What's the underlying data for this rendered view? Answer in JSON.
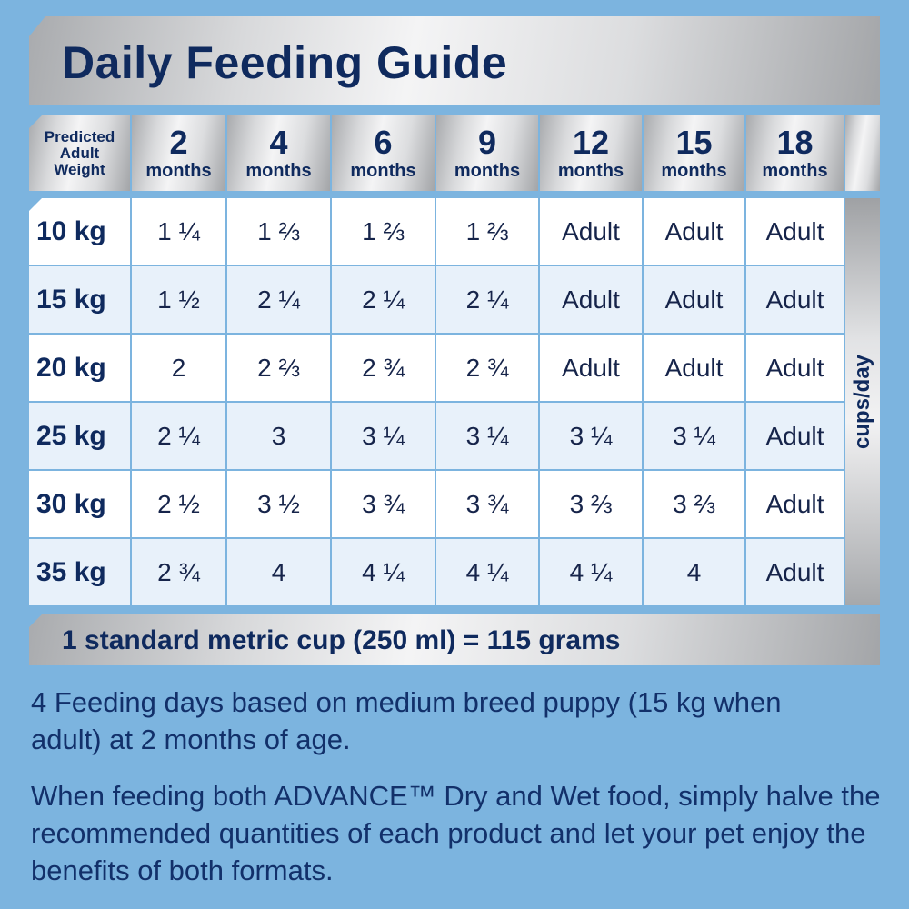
{
  "title": "Daily Feeding Guide",
  "table": {
    "corner_label": [
      "Predicted",
      "Adult",
      "Weight"
    ],
    "columns": [
      {
        "num": "2",
        "unit": "months"
      },
      {
        "num": "4",
        "unit": "months"
      },
      {
        "num": "6",
        "unit": "months"
      },
      {
        "num": "9",
        "unit": "months"
      },
      {
        "num": "12",
        "unit": "months"
      },
      {
        "num": "15",
        "unit": "months"
      },
      {
        "num": "18",
        "unit": "months"
      }
    ],
    "rows": [
      {
        "weight": "10 kg",
        "values": [
          "1 ¼",
          "1 ⅔",
          "1 ⅔",
          "1 ⅔",
          "Adult",
          "Adult",
          "Adult"
        ]
      },
      {
        "weight": "15 kg",
        "values": [
          "1 ½",
          "2 ¼",
          "2 ¼",
          "2 ¼",
          "Adult",
          "Adult",
          "Adult"
        ]
      },
      {
        "weight": "20 kg",
        "values": [
          "2",
          "2 ⅔",
          "2 ¾",
          "2 ¾",
          "Adult",
          "Adult",
          "Adult"
        ]
      },
      {
        "weight": "25 kg",
        "values": [
          "2 ¼",
          "3",
          "3 ¼",
          "3 ¼",
          "3 ¼",
          "3 ¼",
          "Adult"
        ]
      },
      {
        "weight": "30 kg",
        "values": [
          "2 ½",
          "3 ½",
          "3 ¾",
          "3 ¾",
          "3 ⅔",
          "3 ⅔",
          "Adult"
        ]
      },
      {
        "weight": "35 kg",
        "values": [
          "2 ¾",
          "4",
          "4 ¼",
          "4 ¼",
          "4 ¼",
          "4",
          "Adult"
        ]
      }
    ],
    "unit_label": "cups/day"
  },
  "footer": "1 standard metric cup (250 ml) = 115 grams",
  "notes": [
    "4 Feeding days based on medium breed puppy (15 kg when adult) at 2 months of age.",
    "When feeding both ADVANCE™ Dry and Wet food, simply halve the recommended quantities of each product and let your pet enjoy the benefits of both formats."
  ]
}
